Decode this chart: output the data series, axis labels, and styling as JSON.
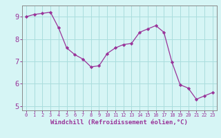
{
  "x": [
    0,
    1,
    2,
    3,
    4,
    5,
    6,
    7,
    8,
    9,
    10,
    11,
    12,
    13,
    14,
    15,
    16,
    17,
    18,
    19,
    20,
    21,
    22,
    23
  ],
  "y": [
    9.0,
    9.1,
    9.15,
    9.2,
    8.5,
    7.6,
    7.3,
    7.1,
    6.75,
    6.8,
    7.35,
    7.6,
    7.75,
    7.8,
    8.3,
    8.45,
    8.6,
    8.3,
    6.95,
    5.95,
    5.8,
    5.3,
    5.45,
    5.6
  ],
  "line_color": "#993399",
  "marker": "D",
  "marker_size": 2.2,
  "bg_color": "#d6f5f5",
  "grid_color": "#aadddd",
  "xlabel": "Windchill (Refroidissement éolien,°C)",
  "xlabel_color": "#993399",
  "tick_color": "#993399",
  "xlim": [
    -0.5,
    23.5
  ],
  "ylim": [
    4.8,
    9.5
  ],
  "yticks": [
    5,
    6,
    7,
    8,
    9
  ],
  "xticks": [
    0,
    1,
    2,
    3,
    4,
    5,
    6,
    7,
    8,
    9,
    10,
    11,
    12,
    13,
    14,
    15,
    16,
    17,
    18,
    19,
    20,
    21,
    22,
    23
  ]
}
